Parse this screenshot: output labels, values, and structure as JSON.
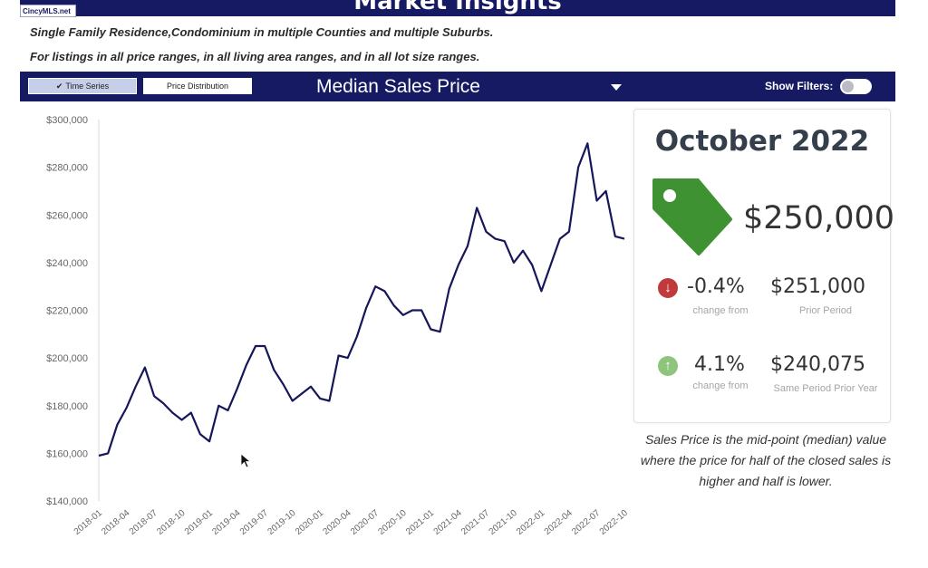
{
  "header": {
    "logo_text": "CincyMLS.net",
    "banner_title": "Market Insights",
    "subtitle_line1": "Single Family Residence,Condominium in multiple Counties and multiple Suburbs.",
    "subtitle_line2": "For listings in all price ranges, in all living area ranges, and in all lot size ranges."
  },
  "toolbar": {
    "time_series_label": "Time Series",
    "price_distribution_label": "Price Distribution",
    "metric_label": "Median Sales Price",
    "show_filters_label": "Show Filters:",
    "toolbar_color": "#151a63"
  },
  "summary": {
    "month": "October 2022",
    "value": "$250,000",
    "tag_color": "#3f9232",
    "change_pct": "-0.4%",
    "change_label": "change from",
    "prior_value": "$251,000",
    "prior_label": "Prior Period",
    "yoy_pct": "4.1%",
    "yoy_label": "change from",
    "same_period_value": "$240,075",
    "same_period_label": "Same Period Prior Year",
    "description": "Sales Price is the mid-point (median) value where the price for half of the closed sales is higher and half is lower."
  },
  "chart_data": {
    "type": "line",
    "title": "",
    "xlabel": "",
    "ylabel": "",
    "ylim": [
      140000,
      300000
    ],
    "yticks": [
      "$140,000",
      "$160,000",
      "$180,000",
      "$200,000",
      "$220,000",
      "$240,000",
      "$260,000",
      "$280,000",
      "$300,000"
    ],
    "xticks": [
      "2018-01",
      "2018-04",
      "2018-07",
      "2018-10",
      "2019-01",
      "2019-04",
      "2019-07",
      "2019-10",
      "2020-01",
      "2020-04",
      "2020-07",
      "2020-10",
      "2021-01",
      "2021-04",
      "2021-07",
      "2021-10",
      "2022-01",
      "2022-04",
      "2022-07",
      "2022-10"
    ],
    "x": [
      "2018-01",
      "2018-02",
      "2018-03",
      "2018-04",
      "2018-05",
      "2018-06",
      "2018-07",
      "2018-08",
      "2018-09",
      "2018-10",
      "2018-11",
      "2018-12",
      "2019-01",
      "2019-02",
      "2019-03",
      "2019-04",
      "2019-05",
      "2019-06",
      "2019-07",
      "2019-08",
      "2019-09",
      "2019-10",
      "2019-11",
      "2019-12",
      "2020-01",
      "2020-02",
      "2020-03",
      "2020-04",
      "2020-05",
      "2020-06",
      "2020-07",
      "2020-08",
      "2020-09",
      "2020-10",
      "2020-11",
      "2020-12",
      "2021-01",
      "2021-02",
      "2021-03",
      "2021-04",
      "2021-05",
      "2021-06",
      "2021-07",
      "2021-08",
      "2021-09",
      "2021-10",
      "2021-11",
      "2021-12",
      "2022-01",
      "2022-02",
      "2022-03",
      "2022-04",
      "2022-05",
      "2022-06",
      "2022-07",
      "2022-08",
      "2022-09",
      "2022-10"
    ],
    "values": [
      159000,
      160000,
      172000,
      179000,
      188000,
      196000,
      184000,
      181000,
      177000,
      174000,
      177000,
      168000,
      165000,
      180000,
      178000,
      187000,
      197000,
      205000,
      205000,
      195000,
      189000,
      182000,
      185000,
      188000,
      183000,
      182000,
      201000,
      200000,
      209000,
      221000,
      230000,
      228000,
      222000,
      218000,
      220000,
      220000,
      212000,
      211000,
      229000,
      239000,
      247000,
      263000,
      253000,
      250000,
      249000,
      240000,
      245000,
      239000,
      228000,
      239000,
      250000,
      253000,
      280000,
      290000,
      266000,
      270000,
      251000,
      250000
    ],
    "line_color": "#16165a",
    "grid": false
  }
}
